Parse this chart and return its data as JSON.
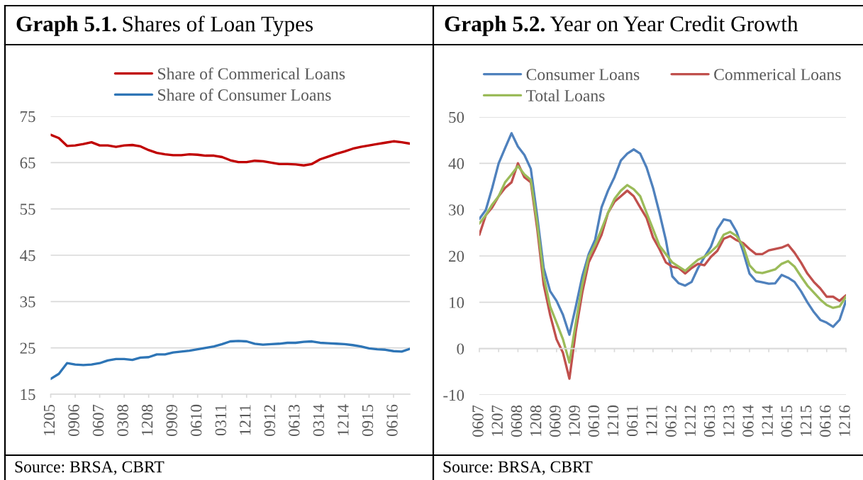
{
  "chart_data": [
    {
      "type": "line",
      "title": "Graph 5.1. Shares of Loan Types",
      "categories": [
        "1205",
        null,
        null,
        "0906",
        null,
        null,
        "0607",
        null,
        null,
        "0308",
        null,
        null,
        "1208",
        null,
        null,
        "0909",
        null,
        null,
        "0610",
        null,
        null,
        "0311",
        null,
        null,
        "1211",
        null,
        null,
        "0912",
        null,
        null,
        "0613",
        null,
        null,
        "0314",
        null,
        null,
        "1214",
        null,
        null,
        "0915",
        null,
        null,
        "0616",
        null,
        null
      ],
      "series": [
        {
          "name": "Share of Commerical Loans",
          "color": "#c00000",
          "values": [
            71.0,
            70.3,
            68.6,
            68.7,
            69.0,
            69.4,
            68.7,
            68.7,
            68.4,
            68.7,
            68.8,
            68.5,
            67.7,
            67.1,
            66.8,
            66.6,
            66.6,
            66.8,
            66.7,
            66.5,
            66.5,
            66.2,
            65.5,
            65.1,
            65.1,
            65.4,
            65.3,
            65.0,
            64.7,
            64.7,
            64.6,
            64.4,
            64.7,
            65.7,
            66.3,
            66.9,
            67.4,
            68.0,
            68.4,
            68.7,
            69.0,
            69.3,
            69.6,
            69.4,
            69.1
          ]
        },
        {
          "name": "Share of Consumer Loans",
          "color": "#2e75b6",
          "values": [
            18.3,
            19.4,
            21.7,
            21.4,
            21.3,
            21.4,
            21.7,
            22.3,
            22.6,
            22.6,
            22.4,
            22.9,
            23.0,
            23.6,
            23.6,
            24.0,
            24.2,
            24.4,
            24.7,
            25.0,
            25.3,
            25.8,
            26.4,
            26.5,
            26.4,
            25.9,
            25.7,
            25.8,
            25.9,
            26.1,
            26.1,
            26.3,
            26.4,
            26.1,
            26.0,
            25.9,
            25.8,
            25.6,
            25.3,
            24.9,
            24.7,
            24.6,
            24.3,
            24.2,
            24.8
          ]
        }
      ],
      "ylim": [
        15,
        75
      ],
      "yticks": [
        15,
        25,
        35,
        45,
        55,
        65,
        75
      ],
      "grid": "y",
      "legend": "top",
      "line_style": "solid",
      "annotations": [
        "Source: BRSA, CBRT"
      ]
    },
    {
      "type": "line",
      "title": "Graph 5.2. Year on Year Credit Growth",
      "categories": [
        "0607",
        null,
        null,
        "1207",
        null,
        null,
        "0608",
        null,
        null,
        "1208",
        null,
        null,
        "0609",
        null,
        null,
        "1209",
        null,
        null,
        "0610",
        null,
        null,
        "1210",
        null,
        null,
        "0611",
        null,
        null,
        "1211",
        null,
        null,
        "0612",
        null,
        null,
        "1212",
        null,
        null,
        "0613",
        null,
        null,
        "1213",
        null,
        null,
        "0614",
        null,
        null,
        "1214",
        null,
        null,
        "0615",
        null,
        null,
        "1215",
        null,
        null,
        "0616",
        null,
        null,
        "1216"
      ],
      "series": [
        {
          "name": "Consumer Loans",
          "color": "#4f81bd",
          "values": [
            28.0,
            29.9,
            34.7,
            40.0,
            43.3,
            46.5,
            43.6,
            41.8,
            38.8,
            28.5,
            17.4,
            12.4,
            10.3,
            7.3,
            3.0,
            9.1,
            15.6,
            20.4,
            23.5,
            30.5,
            34.1,
            37.0,
            40.6,
            42.1,
            43.0,
            42.1,
            39.1,
            34.7,
            29.3,
            23.4,
            15.6,
            14.1,
            13.6,
            14.4,
            17.4,
            19.8,
            22.0,
            25.8,
            27.9,
            27.6,
            25.2,
            21.0,
            16.2,
            14.6,
            14.3,
            14.0,
            14.1,
            15.9,
            15.3,
            14.4,
            12.4,
            10.0,
            7.9,
            6.2,
            5.6,
            4.7,
            6.2,
            10.3
          ]
        },
        {
          "name": "Commerical Loans",
          "color": "#c0504d",
          "values": [
            24.6,
            28.8,
            30.5,
            32.9,
            34.7,
            35.9,
            40.0,
            37.0,
            35.9,
            25.8,
            13.8,
            7.3,
            2.0,
            -0.9,
            -6.5,
            3.8,
            12.1,
            18.6,
            21.5,
            24.6,
            29.3,
            31.7,
            32.9,
            34.1,
            32.9,
            30.5,
            28.2,
            24.0,
            21.5,
            18.6,
            17.7,
            17.4,
            16.2,
            17.4,
            18.3,
            18.0,
            19.8,
            21.1,
            23.7,
            24.3,
            23.4,
            22.8,
            21.5,
            20.4,
            20.4,
            21.2,
            21.5,
            21.8,
            22.4,
            20.7,
            18.6,
            16.2,
            14.4,
            13.0,
            11.2,
            11.2,
            10.3,
            11.5
          ]
        },
        {
          "name": "Total Loans",
          "color": "#9bbb59",
          "values": [
            27.0,
            28.8,
            31.1,
            32.9,
            35.9,
            37.6,
            39.4,
            37.6,
            36.4,
            27.0,
            15.6,
            9.1,
            5.6,
            2.0,
            -3.0,
            5.6,
            13.8,
            19.8,
            22.4,
            25.8,
            29.3,
            32.3,
            34.1,
            35.3,
            34.4,
            32.9,
            29.3,
            25.8,
            22.2,
            20.4,
            18.6,
            17.7,
            16.8,
            18.0,
            19.2,
            19.8,
            20.9,
            22.2,
            24.6,
            25.2,
            24.3,
            22.2,
            18.0,
            16.5,
            16.3,
            16.7,
            17.1,
            18.3,
            18.9,
            17.7,
            15.6,
            13.6,
            12.1,
            10.6,
            9.4,
            8.8,
            9.1,
            11.2
          ]
        }
      ],
      "ylim": [
        -10,
        50
      ],
      "yticks": [
        -10,
        0,
        10,
        20,
        30,
        40,
        50
      ],
      "grid": "y",
      "legend": "top",
      "line_style": "solid",
      "annotations": [
        "Source: BRSA, CBRT"
      ]
    }
  ]
}
